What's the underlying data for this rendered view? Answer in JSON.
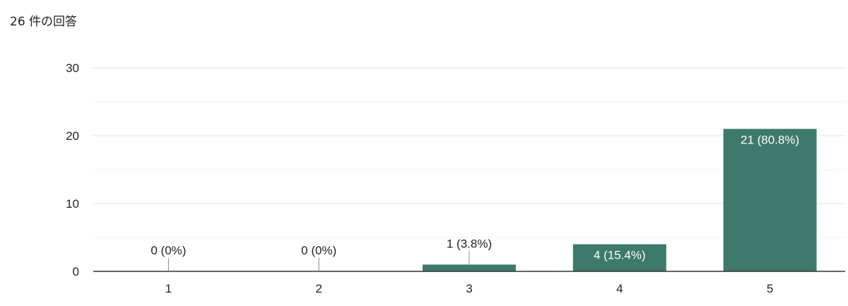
{
  "header": {
    "response_count": "26 件の回答"
  },
  "colors": {
    "bar": "#3d7a6b",
    "grid": "#e0e0e0",
    "baseline": "#333333",
    "label_outside": "#222222",
    "label_inside": "#ffffff"
  },
  "chart_data": {
    "type": "bar",
    "title": "",
    "xlabel": "",
    "ylabel": "",
    "categories": [
      "1",
      "2",
      "3",
      "4",
      "5"
    ],
    "values": [
      0,
      0,
      1,
      4,
      21
    ],
    "data_labels": [
      "0 (0%)",
      "0 (0%)",
      "1 (3.8%)",
      "4 (15.4%)",
      "21 (80.8%)"
    ],
    "ylim": [
      0,
      30
    ],
    "yticks": [
      "0",
      "10",
      "20",
      "30"
    ],
    "ytick_values": [
      0,
      10,
      20,
      30
    ],
    "minor_gridlines": [
      5,
      15,
      25
    ],
    "grid": true,
    "legend": "none"
  }
}
